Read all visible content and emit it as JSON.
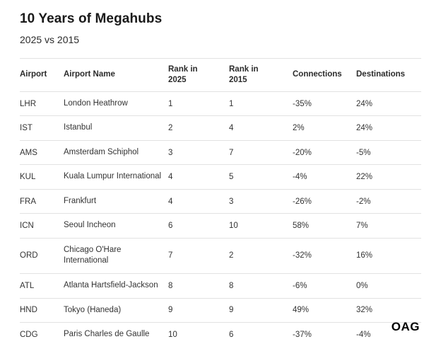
{
  "header": {
    "title": "10 Years of Megahubs",
    "subtitle": "2025 vs 2015"
  },
  "footer": {
    "logo": "OAG"
  },
  "table": {
    "columns": [
      "Airport",
      "Airport Name",
      "Rank in 2025",
      "Rank in 2015",
      "Connections",
      "Destinations"
    ],
    "rows": [
      {
        "code": "LHR",
        "name": "London Heathrow",
        "rank2025": "1",
        "rank2015": "1",
        "connections": "-35%",
        "destinations": "24%"
      },
      {
        "code": "IST",
        "name": "Istanbul",
        "rank2025": "2",
        "rank2015": "4",
        "connections": "2%",
        "destinations": "24%"
      },
      {
        "code": "AMS",
        "name": "Amsterdam Schiphol",
        "rank2025": "3",
        "rank2015": "7",
        "connections": "-20%",
        "destinations": "-5%"
      },
      {
        "code": "KUL",
        "name": "Kuala Lumpur International",
        "rank2025": "4",
        "rank2015": "5",
        "connections": "-4%",
        "destinations": "22%"
      },
      {
        "code": "FRA",
        "name": "Frankfurt",
        "rank2025": "4",
        "rank2015": "3",
        "connections": "-26%",
        "destinations": "-2%"
      },
      {
        "code": "ICN",
        "name": "Seoul Incheon",
        "rank2025": "6",
        "rank2015": "10",
        "connections": "58%",
        "destinations": "7%"
      },
      {
        "code": "ORD",
        "name": "Chicago O'Hare International",
        "rank2025": "7",
        "rank2015": "2",
        "connections": "-32%",
        "destinations": "16%"
      },
      {
        "code": "ATL",
        "name": "Atlanta Hartsfield-Jackson",
        "rank2025": "8",
        "rank2015": "8",
        "connections": "-6%",
        "destinations": "0%"
      },
      {
        "code": "HND",
        "name": "Tokyo (Haneda)",
        "rank2025": "9",
        "rank2015": "9",
        "connections": "49%",
        "destinations": "32%"
      },
      {
        "code": "CDG",
        "name": "Paris Charles de Gaulle",
        "rank2025": "10",
        "rank2015": "6",
        "connections": "-37%",
        "destinations": "-4%"
      }
    ]
  },
  "chart_data": {
    "type": "table",
    "title": "10 Years of Megahubs",
    "subtitle": "2025 vs 2015",
    "columns": [
      "Airport",
      "Airport Name",
      "Rank in 2025",
      "Rank in 2015",
      "Connections",
      "Destinations"
    ],
    "rows": [
      [
        "LHR",
        "London Heathrow",
        1,
        1,
        "-35%",
        "24%"
      ],
      [
        "IST",
        "Istanbul",
        2,
        4,
        "2%",
        "24%"
      ],
      [
        "AMS",
        "Amsterdam Schiphol",
        3,
        7,
        "-20%",
        "-5%"
      ],
      [
        "KUL",
        "Kuala Lumpur International",
        4,
        5,
        "-4%",
        "22%"
      ],
      [
        "FRA",
        "Frankfurt",
        4,
        3,
        "-26%",
        "-2%"
      ],
      [
        "ICN",
        "Seoul Incheon",
        6,
        10,
        "58%",
        "7%"
      ],
      [
        "ORD",
        "Chicago O'Hare International",
        7,
        2,
        "-32%",
        "16%"
      ],
      [
        "ATL",
        "Atlanta Hartsfield-Jackson",
        8,
        8,
        "-6%",
        "0%"
      ],
      [
        "HND",
        "Tokyo (Haneda)",
        9,
        9,
        "49%",
        "32%"
      ],
      [
        "CDG",
        "Paris Charles de Gaulle",
        10,
        6,
        "-37%",
        "-4%"
      ]
    ]
  }
}
